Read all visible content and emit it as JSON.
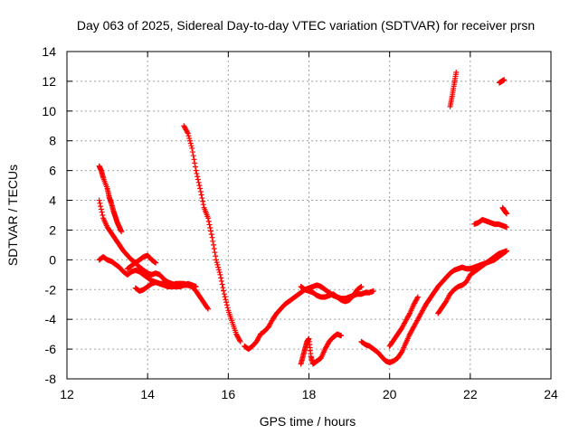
{
  "chart_data": {
    "type": "scatter",
    "title": "Day 063 of 2025, Sidereal Day-to-day VTEC variation (SDTVAR) for receiver prsn",
    "xlabel": "GPS time / hours",
    "ylabel": "SDTVAR / TECUs",
    "xlim": [
      12,
      24
    ],
    "ylim": [
      -8,
      14
    ],
    "xticks": [
      12,
      14,
      16,
      18,
      20,
      22,
      24
    ],
    "yticks": [
      -8,
      -6,
      -4,
      -2,
      0,
      2,
      4,
      6,
      8,
      10,
      12,
      14
    ],
    "grid": true,
    "marker": "+",
    "color": "#ff0000",
    "series": [
      {
        "name": "s1",
        "x": [
          12.8,
          12.9,
          13.0,
          13.1,
          13.2,
          13.3,
          13.4,
          13.5,
          13.6,
          13.7,
          13.8,
          13.9,
          14.0,
          14.1,
          14.2
        ],
        "y": [
          4.0,
          2.8,
          2.2,
          1.8,
          1.4,
          1.0,
          0.6,
          0.3,
          0.0,
          -0.2,
          0.0,
          0.2,
          0.3,
          0.0,
          -0.2
        ]
      },
      {
        "name": "s2",
        "x": [
          12.8,
          12.85,
          12.9,
          13.0,
          13.05,
          13.1,
          13.15,
          13.2,
          13.25,
          13.3,
          13.35
        ],
        "y": [
          6.3,
          6.0,
          5.5,
          4.8,
          4.2,
          3.8,
          3.3,
          2.9,
          2.5,
          2.2,
          1.9
        ]
      },
      {
        "name": "s3",
        "x": [
          12.8,
          12.9,
          13.0,
          13.1,
          13.2,
          13.3,
          13.4,
          13.5,
          13.6,
          13.7,
          13.8,
          13.9,
          14.0,
          14.1,
          14.2,
          14.3,
          14.4,
          14.5,
          14.6,
          14.7,
          14.8,
          14.9,
          15.0,
          15.1,
          15.2,
          15.3,
          15.4,
          15.5
        ],
        "y": [
          0.0,
          0.2,
          0.0,
          -0.1,
          -0.3,
          -0.5,
          -0.8,
          -1.0,
          -0.8,
          -0.7,
          -0.8,
          -1.0,
          -1.2,
          -1.4,
          -1.5,
          -1.6,
          -1.6,
          -1.7,
          -1.7,
          -1.6,
          -1.6,
          -1.7,
          -1.7,
          -1.8,
          -2.1,
          -2.5,
          -2.9,
          -3.3
        ]
      },
      {
        "name": "s4",
        "x": [
          13.5,
          13.6,
          13.7,
          13.8,
          13.9,
          14.0,
          14.1,
          14.2,
          14.3,
          14.4,
          14.5,
          14.6,
          14.7,
          14.8,
          14.9,
          15.0,
          15.1
        ],
        "y": [
          -0.6,
          -0.4,
          -0.2,
          -0.5,
          -0.7,
          -0.9,
          -1.0,
          -0.9,
          -1.0,
          -1.3,
          -1.5,
          -1.6,
          -1.7,
          -1.6,
          -1.6,
          -1.7,
          -1.7
        ]
      },
      {
        "name": "s5",
        "x": [
          13.7,
          13.8,
          13.9,
          14.0,
          14.1,
          14.2,
          14.3,
          14.4,
          14.5,
          14.6,
          14.7,
          14.8,
          14.9,
          15.0,
          15.1,
          15.2
        ],
        "y": [
          -1.9,
          -2.1,
          -2.0,
          -1.8,
          -1.6,
          -1.5,
          -1.6,
          -1.7,
          -1.8,
          -1.8,
          -1.8,
          -1.8,
          -1.7,
          -1.6,
          -1.7,
          -1.8
        ]
      },
      {
        "name": "s6",
        "x": [
          14.9,
          15.0,
          15.1,
          15.2,
          15.3,
          15.4,
          15.5,
          15.6,
          15.7,
          15.8,
          15.9,
          16.0,
          16.1,
          16.2,
          16.3
        ],
        "y": [
          9.0,
          8.5,
          7.5,
          6.0,
          4.8,
          3.5,
          2.8,
          1.5,
          0.0,
          -1.0,
          -2.3,
          -3.4,
          -4.2,
          -5.0,
          -5.5
        ]
      },
      {
        "name": "s7",
        "x": [
          16.4,
          16.5,
          16.6,
          16.7,
          16.8,
          16.9,
          17.0,
          17.1,
          17.2,
          17.3,
          17.4,
          17.5,
          17.6,
          17.7,
          17.8,
          17.9,
          18.0,
          18.1,
          18.2,
          18.3,
          18.4,
          18.5,
          18.6,
          18.7,
          18.8,
          18.9,
          19.0,
          19.1,
          19.2,
          19.3,
          19.4,
          19.5,
          19.6
        ],
        "y": [
          -5.8,
          -6.0,
          -5.8,
          -5.5,
          -5.0,
          -4.8,
          -4.5,
          -4.0,
          -3.6,
          -3.3,
          -3.0,
          -2.8,
          -2.6,
          -2.4,
          -2.2,
          -2.0,
          -1.9,
          -1.8,
          -1.7,
          -1.8,
          -2.0,
          -2.2,
          -2.4,
          -2.5,
          -2.6,
          -2.6,
          -2.5,
          -2.4,
          -2.3,
          -2.3,
          -2.2,
          -2.2,
          -2.1
        ]
      },
      {
        "name": "s8",
        "x": [
          17.8,
          17.9,
          18.0,
          18.1,
          18.2,
          18.3,
          18.4,
          18.5,
          18.6,
          18.7,
          18.8,
          18.9,
          19.0,
          19.1,
          19.2,
          19.3
        ],
        "y": [
          -1.8,
          -2.0,
          -2.1,
          -2.2,
          -2.4,
          -2.5,
          -2.5,
          -2.4,
          -2.3,
          -2.5,
          -2.7,
          -2.8,
          -2.7,
          -2.4,
          -2.0,
          -1.8
        ]
      },
      {
        "name": "s9",
        "x": [
          17.8,
          17.85,
          17.9,
          17.95,
          18.0,
          18.05,
          18.1,
          18.2,
          18.3,
          18.4,
          18.5,
          18.6,
          18.7,
          18.8
        ],
        "y": [
          -7.0,
          -6.5,
          -6.0,
          -5.5,
          -5.3,
          -6.5,
          -7.0,
          -6.8,
          -6.6,
          -6.0,
          -5.5,
          -5.2,
          -5.0,
          -5.1
        ]
      },
      {
        "name": "s10",
        "x": [
          19.3,
          19.4,
          19.5,
          19.6,
          19.7,
          19.8,
          19.9,
          20.0,
          20.1,
          20.2,
          20.3,
          20.4,
          20.5,
          20.6,
          20.7,
          20.8,
          20.9,
          21.0,
          21.1,
          21.2,
          21.3,
          21.4,
          21.5,
          21.6,
          21.7,
          21.8,
          21.9,
          22.0,
          22.1,
          22.2,
          22.3,
          22.4,
          22.5,
          22.6,
          22.7,
          22.8,
          22.9
        ],
        "y": [
          -5.5,
          -5.7,
          -5.8,
          -6.0,
          -6.2,
          -6.5,
          -6.8,
          -6.9,
          -6.8,
          -6.6,
          -6.2,
          -5.6,
          -5.0,
          -4.5,
          -4.0,
          -3.5,
          -3.0,
          -2.6,
          -2.2,
          -1.8,
          -1.5,
          -1.2,
          -0.9,
          -0.7,
          -0.6,
          -0.5,
          -0.6,
          -0.6,
          -0.5,
          -0.4,
          -0.3,
          -0.2,
          -0.1,
          0.0,
          0.2,
          0.4,
          0.6
        ]
      },
      {
        "name": "s11",
        "x": [
          20.0,
          20.1,
          20.2,
          20.3,
          20.4,
          20.5,
          20.6,
          20.7
        ],
        "y": [
          -5.8,
          -5.4,
          -5.0,
          -4.6,
          -4.1,
          -3.6,
          -3.0,
          -2.5
        ]
      },
      {
        "name": "s12",
        "x": [
          21.2,
          21.3,
          21.4,
          21.5,
          21.6,
          21.7,
          21.8,
          21.9,
          22.0,
          22.1,
          22.2,
          22.3,
          22.4,
          22.5,
          22.6,
          22.7,
          22.8,
          22.9
        ],
        "y": [
          -3.6,
          -3.2,
          -2.8,
          -2.3,
          -2.0,
          -1.8,
          -1.7,
          -1.5,
          -1.0,
          -0.8,
          -0.6,
          -0.4,
          -0.2,
          0.0,
          0.2,
          0.4,
          0.5,
          0.6
        ]
      },
      {
        "name": "s13",
        "x": [
          22.1,
          22.2,
          22.3,
          22.4,
          22.5,
          22.6,
          22.7,
          22.8,
          22.9
        ],
        "y": [
          2.4,
          2.5,
          2.7,
          2.6,
          2.5,
          2.4,
          2.4,
          2.3,
          2.2
        ]
      },
      {
        "name": "s14",
        "x": [
          22.8,
          22.85,
          22.9
        ],
        "y": [
          3.5,
          3.3,
          3.1
        ]
      },
      {
        "name": "s15",
        "x": [
          21.5,
          21.55,
          21.6,
          21.65
        ],
        "y": [
          10.3,
          11.0,
          11.8,
          12.6
        ]
      },
      {
        "name": "s16",
        "x": [
          22.72,
          22.78,
          22.84
        ],
        "y": [
          11.9,
          12.0,
          12.1
        ]
      }
    ]
  }
}
